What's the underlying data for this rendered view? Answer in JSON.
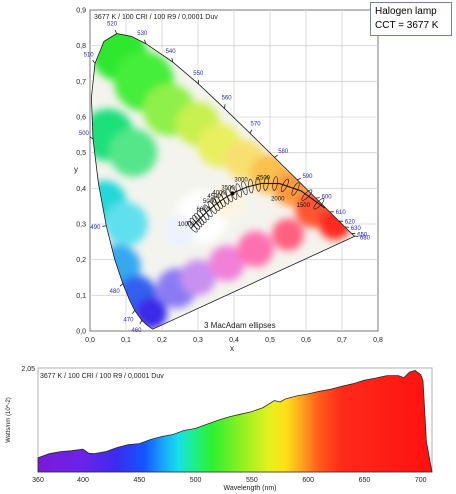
{
  "callout": {
    "lamp_name": "Halogen lamp",
    "cct_text": "CCT = 3677 K"
  },
  "colors": {
    "axis": "#5a5a5a",
    "grid": "#d4d4d4",
    "wavelength_label": "#2a2ab0",
    "locus": "#1a1a1a"
  },
  "chart_data": [
    {
      "type": "scatter",
      "title": "3677 K / 100 CRI / 100 R9 / 0,0001 Duv",
      "xlabel": "x",
      "ylabel": "y",
      "xlim": [
        0,
        0.8
      ],
      "ylim": [
        0,
        0.9
      ],
      "x_ticks": [
        0,
        0.1,
        0.2,
        0.3,
        0.4,
        0.5,
        0.6,
        0.7,
        0.8
      ],
      "y_ticks": [
        0,
        0.1,
        0.2,
        0.3,
        0.4,
        0.5,
        0.6,
        0.7,
        0.8,
        0.9
      ],
      "x_tick_labels": [
        "0,0",
        "0,1",
        "0,2",
        "0,3",
        "0,4",
        "0,5",
        "0,6",
        "0,7",
        "0,8"
      ],
      "y_tick_labels": [
        "0,0",
        "0,1",
        "0,2",
        "0,3",
        "0,4",
        "0,5",
        "0,6",
        "0,7",
        "0,8",
        "0,9"
      ],
      "grid": true,
      "annotation": "3 MacAdam ellipses",
      "spectral_locus": [
        {
          "nm": 380,
          "x": 0.1741,
          "y": 0.005
        },
        {
          "nm": 450,
          "x": 0.1566,
          "y": 0.0177
        },
        {
          "nm": 460,
          "x": 0.144,
          "y": 0.0297
        },
        {
          "nm": 470,
          "x": 0.1241,
          "y": 0.0578
        },
        {
          "nm": 475,
          "x": 0.1096,
          "y": 0.0868
        },
        {
          "nm": 480,
          "x": 0.0913,
          "y": 0.1327
        },
        {
          "nm": 485,
          "x": 0.0687,
          "y": 0.2007
        },
        {
          "nm": 490,
          "x": 0.0454,
          "y": 0.295
        },
        {
          "nm": 495,
          "x": 0.0235,
          "y": 0.4127
        },
        {
          "nm": 500,
          "x": 0.0082,
          "y": 0.5384
        },
        {
          "nm": 505,
          "x": 0.0039,
          "y": 0.6548
        },
        {
          "nm": 510,
          "x": 0.0139,
          "y": 0.7502
        },
        {
          "nm": 515,
          "x": 0.0389,
          "y": 0.812
        },
        {
          "nm": 520,
          "x": 0.0743,
          "y": 0.8338
        },
        {
          "nm": 525,
          "x": 0.1142,
          "y": 0.8262
        },
        {
          "nm": 530,
          "x": 0.1547,
          "y": 0.8059
        },
        {
          "nm": 540,
          "x": 0.2296,
          "y": 0.7543
        },
        {
          "nm": 550,
          "x": 0.3016,
          "y": 0.6923
        },
        {
          "nm": 560,
          "x": 0.3731,
          "y": 0.6245
        },
        {
          "nm": 570,
          "x": 0.4441,
          "y": 0.5547
        },
        {
          "nm": 580,
          "x": 0.5125,
          "y": 0.4866
        },
        {
          "nm": 590,
          "x": 0.5752,
          "y": 0.4242
        },
        {
          "nm": 600,
          "x": 0.627,
          "y": 0.3725
        },
        {
          "nm": 610,
          "x": 0.6658,
          "y": 0.334
        },
        {
          "nm": 620,
          "x": 0.6915,
          "y": 0.3083
        },
        {
          "nm": 630,
          "x": 0.7079,
          "y": 0.292
        },
        {
          "nm": 640,
          "x": 0.719,
          "y": 0.2809
        },
        {
          "nm": 650,
          "x": 0.726,
          "y": 0.274
        },
        {
          "nm": 680,
          "x": 0.7334,
          "y": 0.2666
        },
        {
          "nm": 700,
          "x": 0.7347,
          "y": 0.2653
        }
      ],
      "wavelength_labels": [
        {
          "nm": 460,
          "text": "460"
        },
        {
          "nm": 470,
          "text": "470"
        },
        {
          "nm": 480,
          "text": "480"
        },
        {
          "nm": 490,
          "text": "490"
        },
        {
          "nm": 500,
          "text": "500"
        },
        {
          "nm": 510,
          "text": "510"
        },
        {
          "nm": 520,
          "text": "520"
        },
        {
          "nm": 530,
          "text": "530"
        },
        {
          "nm": 540,
          "text": "540"
        },
        {
          "nm": 550,
          "text": "550"
        },
        {
          "nm": 560,
          "text": "560"
        },
        {
          "nm": 570,
          "text": "570"
        },
        {
          "nm": 580,
          "text": "580"
        },
        {
          "nm": 590,
          "text": "590"
        },
        {
          "nm": 600,
          "text": "600"
        },
        {
          "nm": 610,
          "text": "610"
        },
        {
          "nm": 620,
          "text": "620"
        },
        {
          "nm": 630,
          "text": "630"
        },
        {
          "nm": 650,
          "text": "650"
        },
        {
          "nm": 680,
          "text": "680"
        }
      ],
      "planckian_locus": [
        {
          "K": 10000,
          "x": 0.2807,
          "y": 0.2884
        },
        {
          "K": 8000,
          "x": 0.295,
          "y": 0.305
        },
        {
          "K": 7000,
          "x": 0.3064,
          "y": 0.3166
        },
        {
          "K": 6000,
          "x": 0.3221,
          "y": 0.3318
        },
        {
          "K": 5000,
          "x": 0.3451,
          "y": 0.3516
        },
        {
          "K": 4500,
          "x": 0.3608,
          "y": 0.3636
        },
        {
          "K": 4000,
          "x": 0.3805,
          "y": 0.3768
        },
        {
          "K": 3500,
          "x": 0.4053,
          "y": 0.3907
        },
        {
          "K": 3000,
          "x": 0.4369,
          "y": 0.4041
        },
        {
          "K": 2500,
          "x": 0.477,
          "y": 0.4137
        },
        {
          "K": 2000,
          "x": 0.5266,
          "y": 0.4133
        },
        {
          "K": 1500,
          "x": 0.5857,
          "y": 0.3931
        },
        {
          "K": 1000,
          "x": 0.6526,
          "y": 0.3446
        }
      ],
      "cct_labels": [
        {
          "text": "10000",
          "x": 0.244,
          "y": 0.295
        },
        {
          "text": "6000",
          "x": 0.296,
          "y": 0.337
        },
        {
          "text": "5000",
          "x": 0.314,
          "y": 0.359
        },
        {
          "text": "4500",
          "x": 0.326,
          "y": 0.373
        },
        {
          "text": "4000",
          "x": 0.34,
          "y": 0.383
        },
        {
          "text": "3500",
          "x": 0.365,
          "y": 0.397
        },
        {
          "text": "3000",
          "x": 0.401,
          "y": 0.419
        },
        {
          "text": "2500",
          "x": 0.463,
          "y": 0.425
        },
        {
          "text": "2000",
          "x": 0.503,
          "y": 0.366
        },
        {
          "text": "1500",
          "x": 0.574,
          "y": 0.347
        }
      ],
      "measured_point": {
        "label": "3677 K",
        "x": 0.3959,
        "y": 0.3857
      }
    },
    {
      "type": "area",
      "title": "3677 K / 100 CRI / 100 R9 / 0,0001 Duv",
      "xlabel": "Wavelength (nm)",
      "ylabel": "Watts/nm (10^-2)",
      "xlim": [
        360,
        710
      ],
      "ylim": [
        0,
        2.05
      ],
      "x_ticks": [
        360,
        400,
        450,
        500,
        550,
        600,
        650,
        700
      ],
      "x_tick_labels": [
        "360",
        "400",
        "450",
        "500",
        "550",
        "600",
        "650",
        "700"
      ],
      "y_ticks": [
        0,
        2.05
      ],
      "y_tick_labels": [
        "",
        "2,05"
      ],
      "x": [
        360,
        370,
        380,
        390,
        400,
        405,
        410,
        420,
        430,
        440,
        450,
        460,
        470,
        480,
        490,
        500,
        510,
        520,
        530,
        540,
        550,
        560,
        570,
        575,
        580,
        590,
        600,
        610,
        620,
        630,
        640,
        650,
        660,
        670,
        680,
        685,
        690,
        695,
        700,
        702,
        705,
        710
      ],
      "y": [
        0.28,
        0.36,
        0.4,
        0.42,
        0.45,
        0.37,
        0.36,
        0.4,
        0.48,
        0.54,
        0.56,
        0.64,
        0.7,
        0.74,
        0.82,
        0.86,
        0.94,
        1.02,
        1.09,
        1.14,
        1.19,
        1.27,
        1.41,
        1.38,
        1.44,
        1.5,
        1.54,
        1.59,
        1.63,
        1.69,
        1.74,
        1.81,
        1.85,
        1.9,
        1.9,
        1.86,
        1.97,
        2.0,
        1.92,
        1.8,
        0.6,
        0.0
      ]
    }
  ]
}
